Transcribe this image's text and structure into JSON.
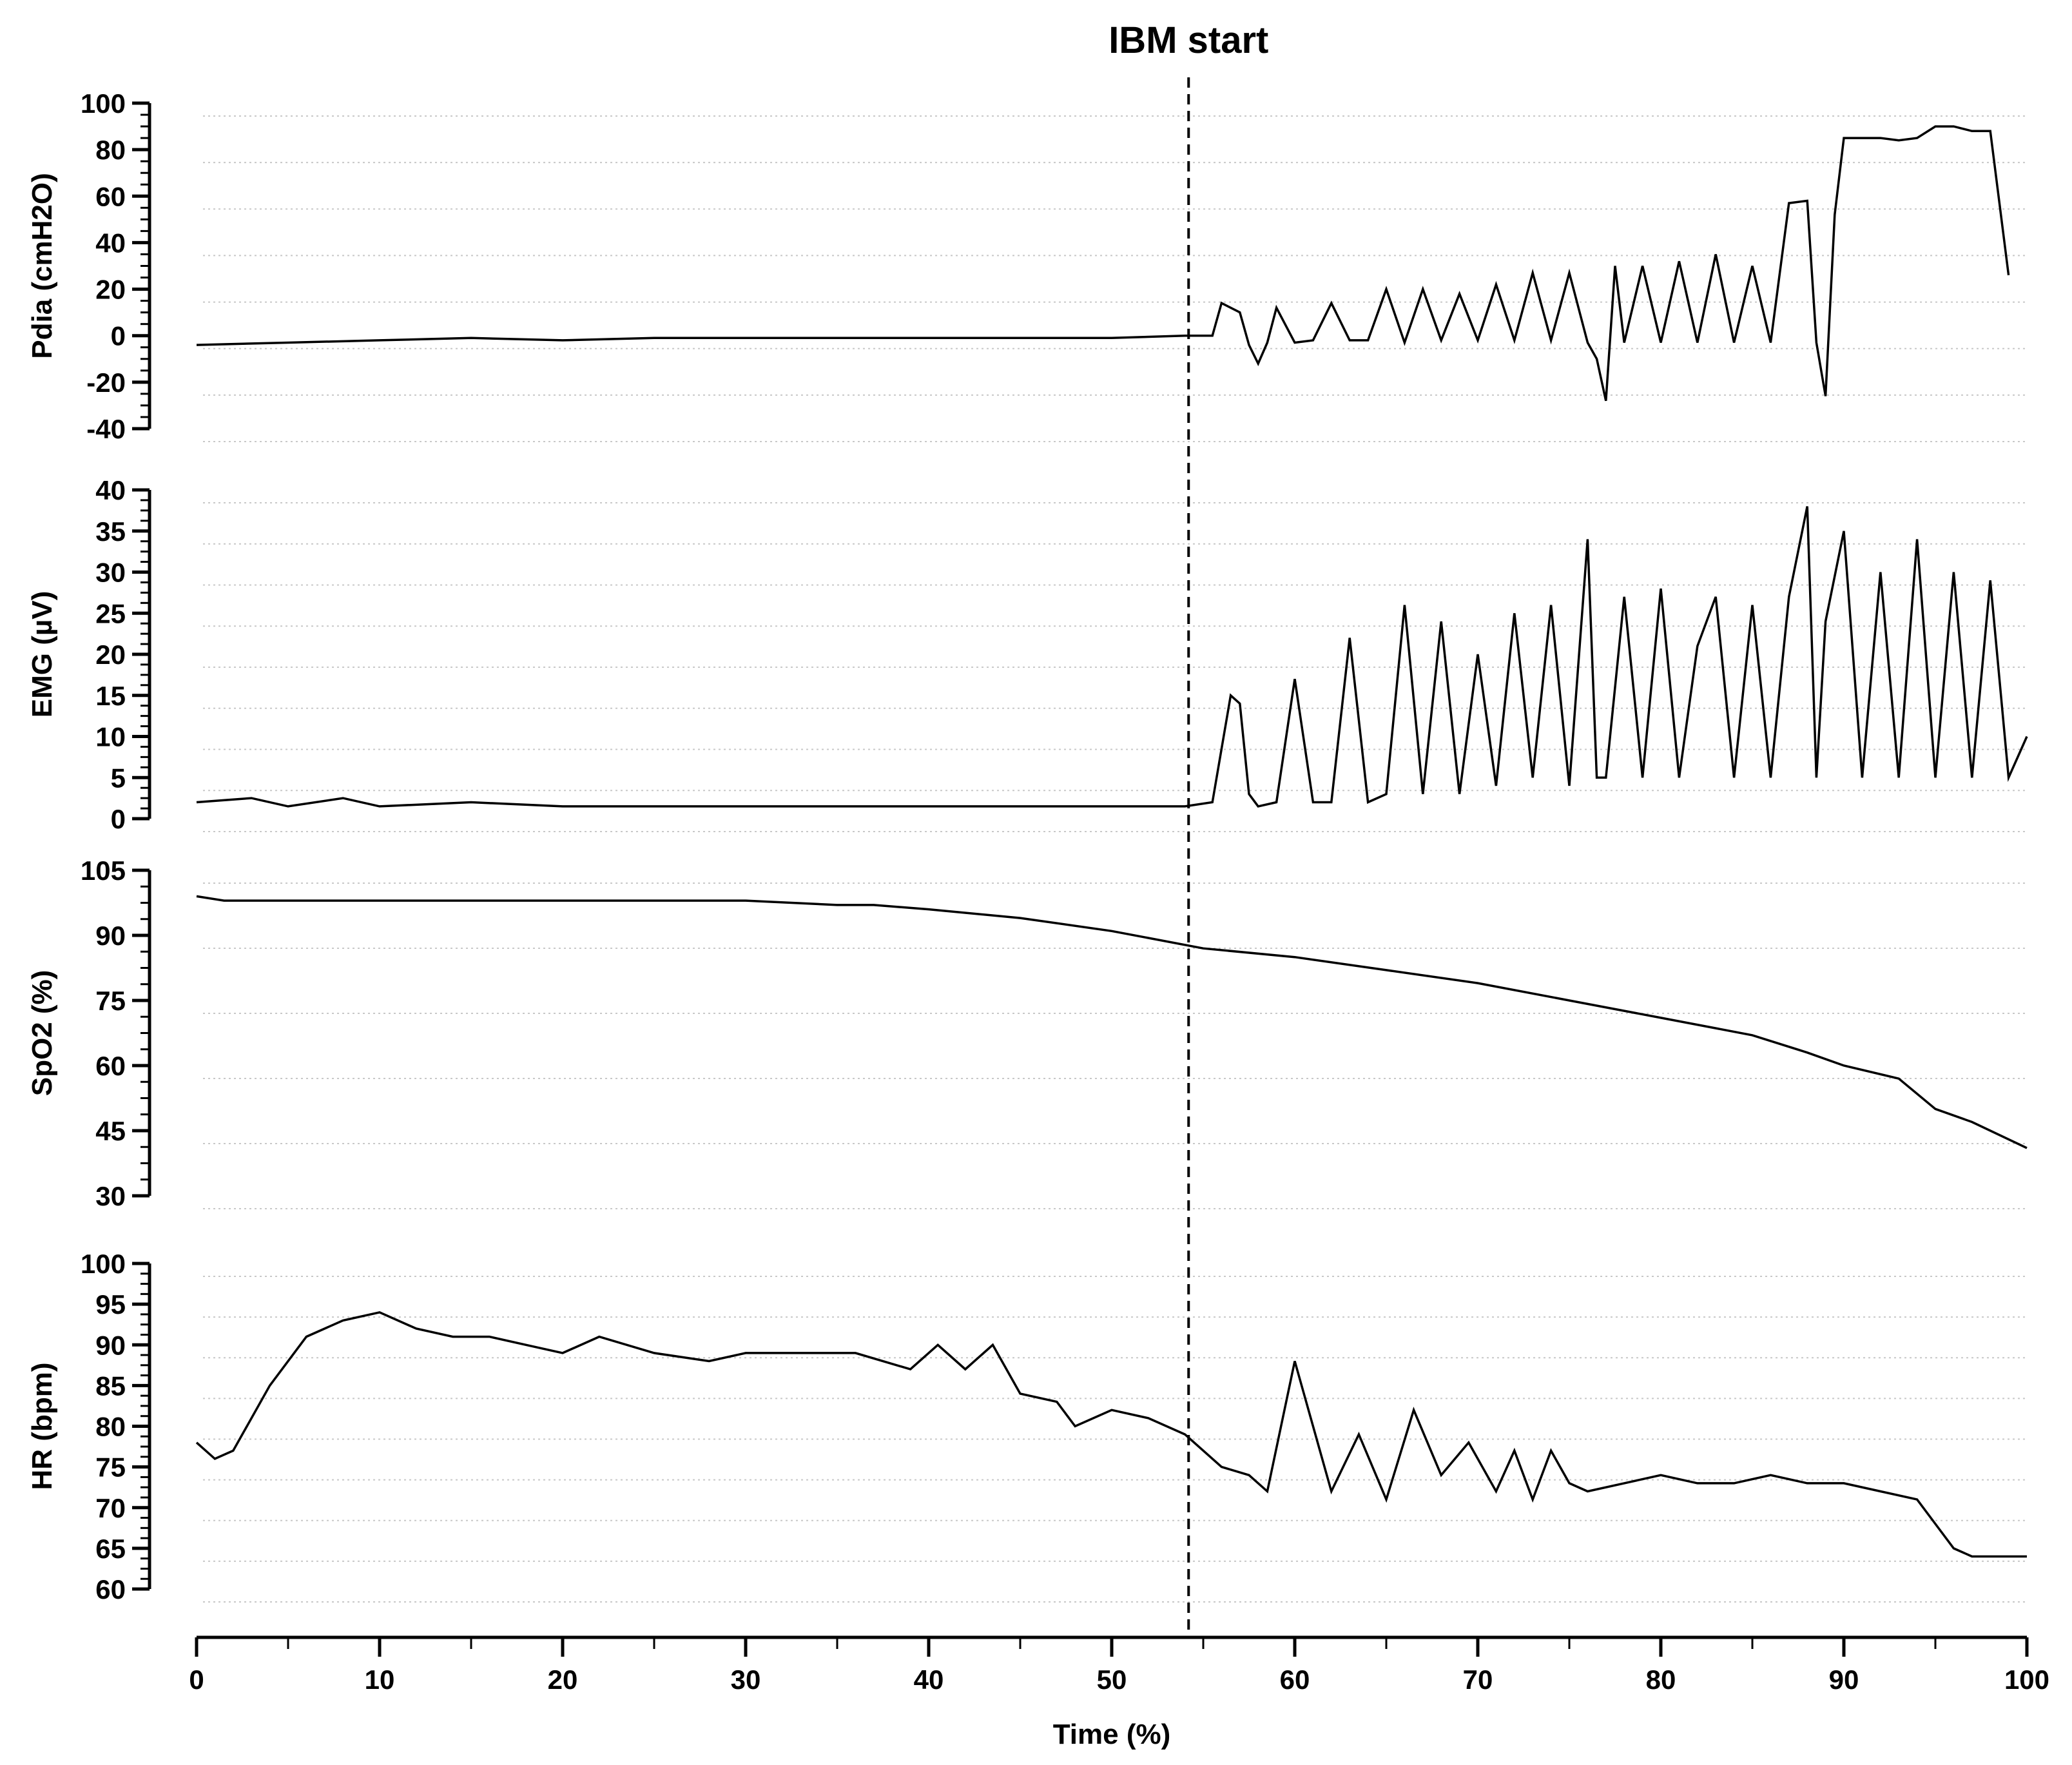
{
  "chart_data": {
    "type": "line",
    "annotation": {
      "label": "IBM start",
      "x": 54.2
    },
    "x_axis": {
      "label": "Time (%)",
      "range": [
        0,
        100
      ],
      "ticks": [
        "0",
        "10",
        "20",
        "30",
        "40",
        "50",
        "60",
        "70",
        "80",
        "90",
        "100"
      ]
    },
    "grid": "horizontal dotted",
    "panels": [
      {
        "key": "pdia",
        "ylabel": "Pdia (cmH2O)",
        "ylim": [
          -40,
          100
        ],
        "yticks": [
          "-40",
          "-20",
          "0",
          "20",
          "40",
          "60",
          "80",
          "100"
        ],
        "series": [
          {
            "x": [
              0,
              5,
              10,
              15,
              20,
              25,
              30,
              35,
              40,
              45,
              50,
              54,
              55.5,
              56,
              57,
              57.5,
              58,
              58.5,
              59,
              60,
              61,
              62,
              63,
              64,
              65,
              66,
              67,
              68,
              69,
              70,
              71,
              72,
              73,
              74,
              75,
              76,
              76.5,
              77,
              77.5,
              78,
              79,
              80,
              81,
              82,
              83,
              84,
              85,
              86,
              87,
              88,
              88.5,
              89,
              89.5,
              90,
              91,
              92,
              93,
              94,
              95,
              96,
              97,
              98,
              99
            ],
            "y": [
              -4,
              -3,
              -2,
              -1,
              -2,
              -1,
              -1,
              -1,
              -1,
              -1,
              -1,
              0,
              0,
              14,
              10,
              -4,
              -12,
              -3,
              12,
              -3,
              -2,
              14,
              -2,
              -2,
              20,
              -3,
              20,
              -2,
              18,
              -2,
              22,
              -2,
              27,
              -2,
              27,
              -3,
              -10,
              -28,
              30,
              -3,
              30,
              -3,
              32,
              -3,
              35,
              -3,
              30,
              -3,
              57,
              58,
              -3,
              -26,
              52,
              85,
              85,
              85,
              84,
              85,
              90,
              90,
              88,
              88,
              26
            ]
          }
        ]
      },
      {
        "key": "emg",
        "ylabel": "EMG (µV)",
        "ylim": [
          0,
          40
        ],
        "yticks": [
          "0",
          "5",
          "10",
          "15",
          "20",
          "25",
          "30",
          "35",
          "40"
        ],
        "series": [
          {
            "x": [
              0,
              3,
              5,
              8,
              10,
              15,
              20,
              25,
              30,
              35,
              40,
              45,
              50,
              54,
              55.5,
              56.5,
              57,
              57.5,
              58,
              59,
              60,
              61,
              62,
              63,
              64,
              65,
              66,
              67,
              68,
              69,
              70,
              71,
              72,
              73,
              74,
              75,
              76,
              76.5,
              77,
              78,
              79,
              80,
              81,
              82,
              83,
              84,
              85,
              86,
              87,
              88,
              88.5,
              89,
              90,
              91,
              92,
              93,
              94,
              95,
              96,
              97,
              98,
              99,
              100
            ],
            "y": [
              2,
              2.5,
              1.5,
              2.5,
              1.5,
              2,
              1.5,
              1.5,
              1.5,
              1.5,
              1.5,
              1.5,
              1.5,
              1.5,
              2,
              15,
              14,
              3,
              1.5,
              2,
              17,
              2,
              2,
              22,
              2,
              3,
              26,
              3,
              24,
              3,
              20,
              4,
              25,
              5,
              26,
              4,
              34,
              5,
              5,
              27,
              5,
              28,
              5,
              21,
              27,
              5,
              26,
              5,
              27,
              38,
              5,
              24,
              35,
              5,
              30,
              5,
              34,
              5,
              30,
              5,
              29,
              5,
              10
            ]
          }
        ]
      },
      {
        "key": "spo2",
        "ylabel": "SpO2 (%)",
        "ylim": [
          30,
          105
        ],
        "yticks": [
          "30",
          "45",
          "60",
          "75",
          "90",
          "105"
        ],
        "series": [
          {
            "x": [
              0,
              1.5,
              5,
              10,
              15,
              20,
              25,
              30,
              35,
              37,
              40,
              45,
              50,
              55,
              60,
              65,
              70,
              75,
              80,
              85,
              88,
              90,
              93,
              95,
              97,
              100
            ],
            "y": [
              99,
              98,
              98,
              98,
              98,
              98,
              98,
              98,
              97,
              97,
              96,
              94,
              91,
              87,
              85,
              82,
              79,
              75,
              71,
              67,
              63,
              60,
              57,
              50,
              47,
              41
            ]
          }
        ]
      },
      {
        "key": "hr",
        "ylabel": "HR (bpm)",
        "ylim": [
          60,
          100
        ],
        "yticks": [
          "60",
          "65",
          "70",
          "75",
          "80",
          "85",
          "90",
          "95",
          "100"
        ],
        "series": [
          {
            "x": [
              0,
              1,
              2,
              4,
              6,
              8,
              10,
              12,
              14,
              16,
              18,
              20,
              22,
              25,
              28,
              30,
              33,
              36,
              39,
              40.5,
              42,
              43.5,
              45,
              47,
              48,
              50,
              52,
              54,
              56,
              57.5,
              58.5,
              60,
              61,
              62,
              63.5,
              65,
              66.5,
              68,
              69.5,
              71,
              72,
              73,
              74,
              75,
              76,
              78,
              80,
              82,
              84,
              86,
              88,
              90,
              92,
              94,
              95,
              96,
              97,
              100
            ],
            "y": [
              78,
              76,
              77,
              85,
              91,
              93,
              94,
              92,
              91,
              91,
              90,
              89,
              91,
              89,
              88,
              89,
              89,
              89,
              87,
              90,
              87,
              90,
              84,
              83,
              80,
              82,
              81,
              79,
              75,
              74,
              72,
              88,
              80,
              72,
              79,
              71,
              82,
              74,
              78,
              72,
              77,
              71,
              77,
              73,
              72,
              73,
              74,
              73,
              73,
              74,
              73,
              73,
              72,
              71,
              68,
              65,
              64,
              64
            ]
          }
        ]
      }
    ]
  }
}
